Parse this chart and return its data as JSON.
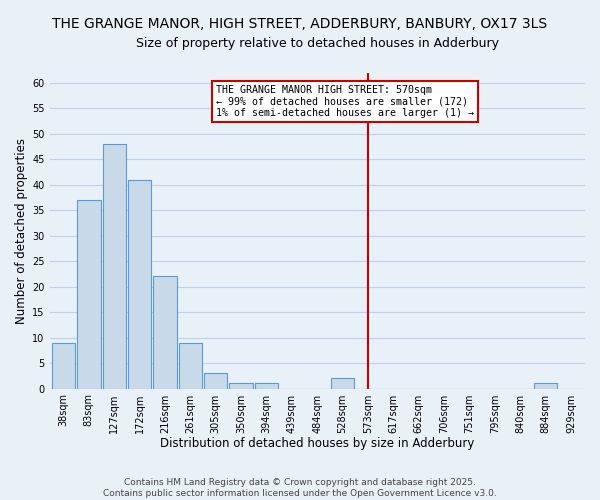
{
  "title": "THE GRANGE MANOR, HIGH STREET, ADDERBURY, BANBURY, OX17 3LS",
  "subtitle": "Size of property relative to detached houses in Adderbury",
  "xlabel": "Distribution of detached houses by size in Adderbury",
  "ylabel": "Number of detached properties",
  "bin_labels": [
    "38sqm",
    "83sqm",
    "127sqm",
    "172sqm",
    "216sqm",
    "261sqm",
    "305sqm",
    "350sqm",
    "394sqm",
    "439sqm",
    "484sqm",
    "528sqm",
    "573sqm",
    "617sqm",
    "662sqm",
    "706sqm",
    "751sqm",
    "795sqm",
    "840sqm",
    "884sqm",
    "929sqm"
  ],
  "bar_heights": [
    9,
    37,
    48,
    41,
    22,
    9,
    3,
    1,
    1,
    0,
    0,
    2,
    0,
    0,
    0,
    0,
    0,
    0,
    0,
    1,
    0
  ],
  "bar_color": "#c8daea",
  "bar_edge_color": "#5b9bd5",
  "vline_x": 12,
  "vline_color": "#cc0000",
  "annotation_title": "THE GRANGE MANOR HIGH STREET: 570sqm",
  "annotation_line1": "← 99% of detached houses are smaller (172)",
  "annotation_line2": "1% of semi-detached houses are larger (1) →",
  "annotation_box_color": "#ffffff",
  "annotation_box_edge": "#cc0000",
  "ylim": [
    0,
    62
  ],
  "yticks": [
    0,
    5,
    10,
    15,
    20,
    25,
    30,
    35,
    40,
    45,
    50,
    55,
    60
  ],
  "grid_color": "#c0d0e8",
  "background_color": "#e8f0f8",
  "footer_line1": "Contains HM Land Registry data © Crown copyright and database right 2025.",
  "footer_line2": "Contains public sector information licensed under the Open Government Licence v3.0.",
  "title_fontsize": 10,
  "subtitle_fontsize": 9,
  "axis_label_fontsize": 8.5,
  "tick_fontsize": 7,
  "footer_fontsize": 6.5
}
